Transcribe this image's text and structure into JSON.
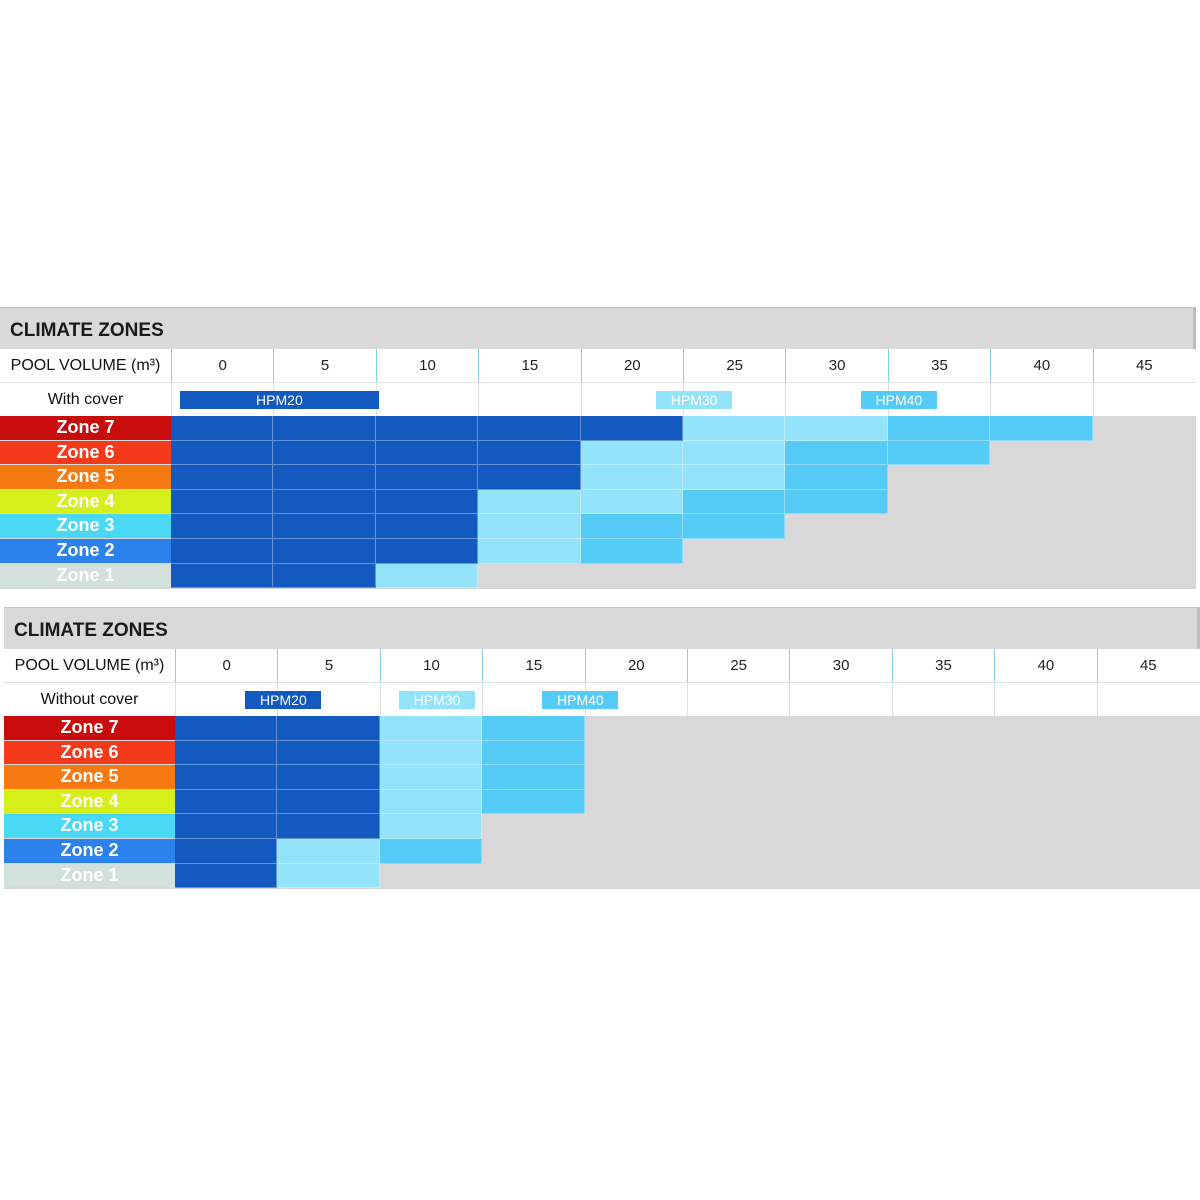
{
  "chart_data": [
    {
      "type": "table",
      "title": "CLIMATE ZONES",
      "header_label": "POOL VOLUME (m³)",
      "columns": [
        "0",
        "5",
        "10",
        "15",
        "20",
        "25",
        "30",
        "35",
        "40",
        "45"
      ],
      "cover_label": "With cover",
      "legend": [
        {
          "name": "HPM20",
          "start": 0,
          "end": 2
        },
        {
          "name": "HPM30",
          "start": 4.65,
          "end": 5.45
        },
        {
          "name": "HPM40",
          "start": 6.65,
          "end": 7.45
        }
      ],
      "zones": [
        {
          "label": "Zone 7",
          "cells": [
            "HPM20",
            "HPM20",
            "HPM20",
            "HPM20",
            "HPM20",
            "HPM30",
            "HPM30",
            "HPM40",
            "HPM40"
          ]
        },
        {
          "label": "Zone 6",
          "cells": [
            "HPM20",
            "HPM20",
            "HPM20",
            "HPM20",
            "HPM30",
            "HPM30",
            "HPM40",
            "HPM40"
          ]
        },
        {
          "label": "Zone 5",
          "cells": [
            "HPM20",
            "HPM20",
            "HPM20",
            "HPM20",
            "HPM30",
            "HPM30",
            "HPM40"
          ]
        },
        {
          "label": "Zone 4",
          "cells": [
            "HPM20",
            "HPM20",
            "HPM20",
            "HPM30",
            "HPM30",
            "HPM40",
            "HPM40"
          ]
        },
        {
          "label": "Zone 3",
          "cells": [
            "HPM20",
            "HPM20",
            "HPM20",
            "HPM30",
            "HPM40",
            "HPM40"
          ]
        },
        {
          "label": "Zone 2",
          "cells": [
            "HPM20",
            "HPM20",
            "HPM20",
            "HPM30",
            "HPM40"
          ]
        },
        {
          "label": "Zone 1",
          "cells": [
            "HPM20",
            "HPM20",
            "HPM30"
          ]
        }
      ]
    },
    {
      "type": "table",
      "title": "CLIMATE ZONES",
      "header_label": "POOL VOLUME (m³)",
      "columns": [
        "0",
        "5",
        "10",
        "15",
        "20",
        "25",
        "30",
        "35",
        "40",
        "45"
      ],
      "cover_label": "Without cover",
      "legend": [
        {
          "name": "HPM20",
          "start": 0.6,
          "end": 1.4
        },
        {
          "name": "HPM30",
          "start": 2.1,
          "end": 2.9
        },
        {
          "name": "HPM40",
          "start": 3.5,
          "end": 4.3
        }
      ],
      "zones": [
        {
          "label": "Zone 7",
          "cells": [
            "HPM20",
            "HPM20",
            "HPM30",
            "HPM40"
          ]
        },
        {
          "label": "Zone 6",
          "cells": [
            "HPM20",
            "HPM20",
            "HPM30",
            "HPM40"
          ]
        },
        {
          "label": "Zone 5",
          "cells": [
            "HPM20",
            "HPM20",
            "HPM30",
            "HPM40"
          ]
        },
        {
          "label": "Zone 4",
          "cells": [
            "HPM20",
            "HPM20",
            "HPM30",
            "HPM40"
          ]
        },
        {
          "label": "Zone 3",
          "cells": [
            "HPM20",
            "HPM20",
            "HPM30"
          ]
        },
        {
          "label": "Zone 2",
          "cells": [
            "HPM20",
            "HPM30",
            "HPM40"
          ]
        },
        {
          "label": "Zone 1",
          "cells": [
            "HPM20",
            "HPM30"
          ]
        }
      ]
    }
  ],
  "colors": {
    "HPM20": "#1259c0",
    "HPM30": "#93e3fb",
    "HPM40": "#55cbf7",
    "Zone 7": "#c80c0c",
    "Zone 6": "#f53a1c",
    "Zone 5": "#f57a12",
    "Zone 4": "#d6ef1a",
    "Zone 3": "#49d9f4",
    "Zone 2": "#2b82ec",
    "Zone 1": "#d2e1dc"
  }
}
